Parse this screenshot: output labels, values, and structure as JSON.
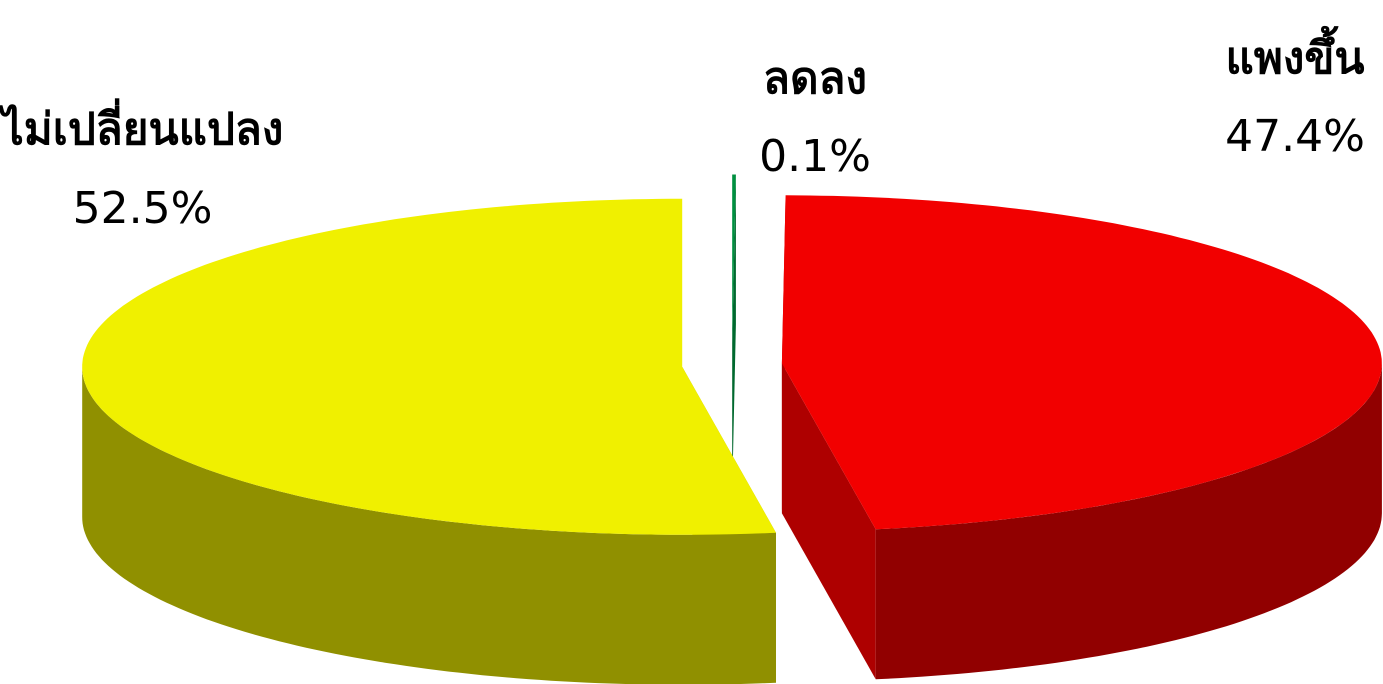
{
  "chart_data": {
    "type": "pie",
    "categories": [
      "ลดลง",
      "แพงขึ้น",
      "ไม่เปลี่ยนแปลง"
    ],
    "values": [
      0.1,
      47.4,
      52.5
    ],
    "value_labels": [
      "0.1%",
      "47.4%",
      "52.5%"
    ],
    "colors": [
      "#009040",
      "#f20000",
      "#f0f000"
    ]
  }
}
